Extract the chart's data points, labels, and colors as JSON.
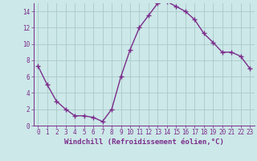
{
  "x": [
    0,
    1,
    2,
    3,
    4,
    5,
    6,
    7,
    8,
    9,
    10,
    11,
    12,
    13,
    14,
    15,
    16,
    17,
    18,
    19,
    20,
    21,
    22,
    23
  ],
  "y": [
    7.3,
    5.0,
    3.0,
    2.0,
    1.2,
    1.2,
    1.0,
    0.5,
    2.0,
    6.0,
    9.3,
    12.0,
    13.5,
    15.0,
    15.2,
    14.6,
    14.0,
    13.0,
    11.3,
    10.2,
    9.0,
    9.0,
    8.5,
    7.0
  ],
  "line_color": "#7b2d8b",
  "marker": "+",
  "markersize": 4,
  "linewidth": 1.0,
  "bg_color": "#cce8e8",
  "grid_color": "#aacaca",
  "xlabel": "Windchill (Refroidissement éolien,°C)",
  "xlabel_color": "#7b2d8b",
  "tick_color": "#7b2d8b",
  "xlim": [
    -0.5,
    23.5
  ],
  "ylim": [
    0,
    15
  ],
  "yticks": [
    0,
    2,
    4,
    6,
    8,
    10,
    12,
    14
  ],
  "xticks": [
    0,
    1,
    2,
    3,
    4,
    5,
    6,
    7,
    8,
    9,
    10,
    11,
    12,
    13,
    14,
    15,
    16,
    17,
    18,
    19,
    20,
    21,
    22,
    23
  ],
  "xtick_labels": [
    "0",
    "1",
    "2",
    "3",
    "4",
    "5",
    "6",
    "7",
    "8",
    "9",
    "10",
    "11",
    "12",
    "13",
    "14",
    "15",
    "16",
    "17",
    "18",
    "19",
    "20",
    "21",
    "22",
    "23"
  ],
  "fontsize_ticks": 5.5,
  "fontsize_xlabel": 6.5
}
